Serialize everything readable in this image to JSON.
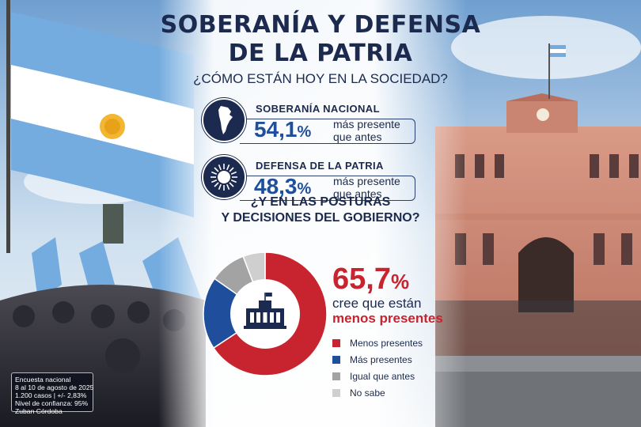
{
  "title_line1": "SOBERANÍA Y DEFENSA",
  "title_line2": "DE LA PATRIA",
  "subtitle": "¿CÓMO ESTÁN HOY EN LA SOCIEDAD?",
  "stats": [
    {
      "label": "SOBERANÍA NACIONAL",
      "value": "54,1",
      "pct": "%",
      "note_line1": "más presente",
      "note_line2": "que antes",
      "icon": "argentina-map-icon"
    },
    {
      "label": "DEFENSA DE LA PATRIA",
      "value": "48,3",
      "pct": "%",
      "note_line1": "más presente",
      "note_line2": "que antes",
      "icon": "sun-of-may-icon"
    }
  ],
  "question_line1": "¿Y EN LAS POSTURAS",
  "question_line2": "Y DECISIONES DEL GOBIERNO?",
  "highlight": {
    "value": "65,7",
    "pct": "%",
    "line1": "cree que están",
    "line2": "menos presentes"
  },
  "chart_data": {
    "type": "pie",
    "categories": [
      "Menos presentes",
      "Más presentes",
      "Igual que antes",
      "No sabe"
    ],
    "values": [
      65.7,
      19.0,
      9.5,
      5.8
    ],
    "colors": [
      "#c8242f",
      "#1f4f9c",
      "#a3a3a3",
      "#cfcfcf"
    ],
    "center_icon": "government-house-icon"
  },
  "source": {
    "line1": "Encuesta nacional",
    "line2": "8 al 10 de agosto de 2025",
    "line3": "1.200 casos | +/- 2,83%",
    "line4": "Nivel de confianza: 95%",
    "line5": "Zuban Córdoba"
  }
}
